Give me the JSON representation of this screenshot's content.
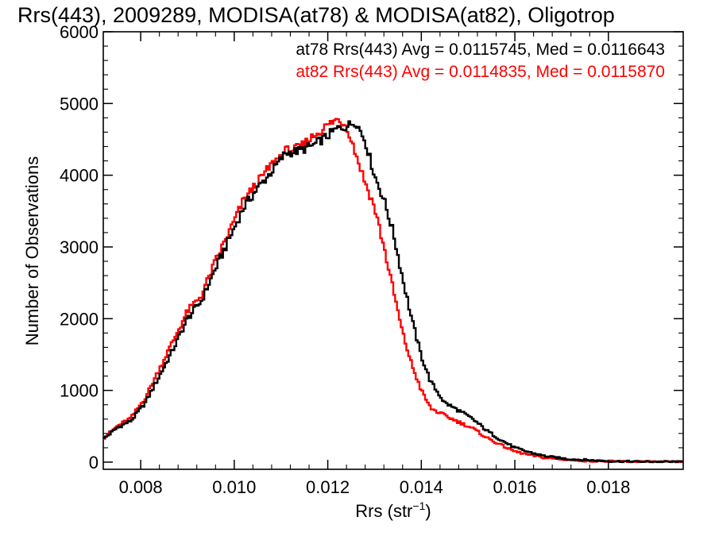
{
  "chart_data": {
    "type": "line",
    "step": true,
    "title": "Rrs(443), 2009289, MODISA(at78) & MODISA(at82), Oligotrop",
    "xlabel_main": "Rrs (str",
    "xlabel_exp": "−1",
    "xlabel_close": ")",
    "ylabel": "Number of Observations",
    "xlim": [
      0.0072,
      0.0196
    ],
    "ylim": [
      -100,
      6000
    ],
    "xticks": [
      0.008,
      0.01,
      0.012,
      0.014,
      0.016,
      0.018
    ],
    "xtick_labels": [
      "0.008",
      "0.010",
      "0.012",
      "0.014",
      "0.016",
      "0.018"
    ],
    "yticks": [
      0,
      1000,
      2000,
      3000,
      4000,
      5000,
      6000
    ],
    "ytick_labels": [
      "0",
      "1000",
      "2000",
      "3000",
      "4000",
      "5000",
      "6000"
    ],
    "grid": false,
    "legend_placement": "top-right",
    "series": [
      {
        "name": "at78",
        "label": "at78 Rrs(443) Avg = 0.0115745, Med = 0.0116643",
        "color": "#000000",
        "x": [
          0.0072,
          0.0075,
          0.0078,
          0.0081,
          0.0084,
          0.0087,
          0.009,
          0.0093,
          0.0096,
          0.0099,
          0.0102,
          0.0105,
          0.0108,
          0.0111,
          0.0114,
          0.0117,
          0.012,
          0.0122,
          0.0124,
          0.0126,
          0.0128,
          0.013,
          0.0132,
          0.0134,
          0.0136,
          0.0138,
          0.014,
          0.0142,
          0.0145,
          0.0148,
          0.0151,
          0.0154,
          0.0157,
          0.016,
          0.0163,
          0.0166,
          0.0169,
          0.0172,
          0.0175,
          0.0178,
          0.0181,
          0.0185,
          0.019,
          0.0196
        ],
        "y": [
          320,
          480,
          580,
          830,
          1200,
          1580,
          2000,
          2250,
          2700,
          3120,
          3550,
          3820,
          4050,
          4310,
          4340,
          4420,
          4550,
          4650,
          4680,
          4750,
          4480,
          4000,
          3660,
          3200,
          2570,
          1980,
          1480,
          1120,
          830,
          720,
          600,
          440,
          310,
          200,
          140,
          90,
          60,
          40,
          30,
          20,
          12,
          8,
          5,
          3
        ]
      },
      {
        "name": "at82",
        "label": "at82 Rrs(443) Avg = 0.0114835, Med = 0.0115870",
        "color": "#ff0000",
        "x": [
          0.0072,
          0.0075,
          0.0078,
          0.0081,
          0.0084,
          0.0087,
          0.009,
          0.0093,
          0.0096,
          0.0099,
          0.0102,
          0.0105,
          0.0108,
          0.0111,
          0.0114,
          0.0117,
          0.012,
          0.0122,
          0.0124,
          0.0126,
          0.0128,
          0.013,
          0.0132,
          0.0134,
          0.0136,
          0.0138,
          0.014,
          0.0142,
          0.0145,
          0.0148,
          0.0151,
          0.0154,
          0.0157,
          0.016,
          0.0163,
          0.0166,
          0.0169,
          0.0172,
          0.0175,
          0.0178,
          0.0181,
          0.0185,
          0.019,
          0.0196
        ],
        "y": [
          330,
          500,
          620,
          900,
          1300,
          1700,
          2100,
          2330,
          2800,
          3220,
          3650,
          3900,
          4150,
          4340,
          4380,
          4550,
          4700,
          4780,
          4700,
          4300,
          3900,
          3550,
          3000,
          2400,
          1800,
          1350,
          1000,
          750,
          650,
          560,
          470,
          340,
          240,
          150,
          100,
          65,
          45,
          30,
          20,
          14,
          9,
          6,
          4,
          2
        ]
      }
    ]
  }
}
